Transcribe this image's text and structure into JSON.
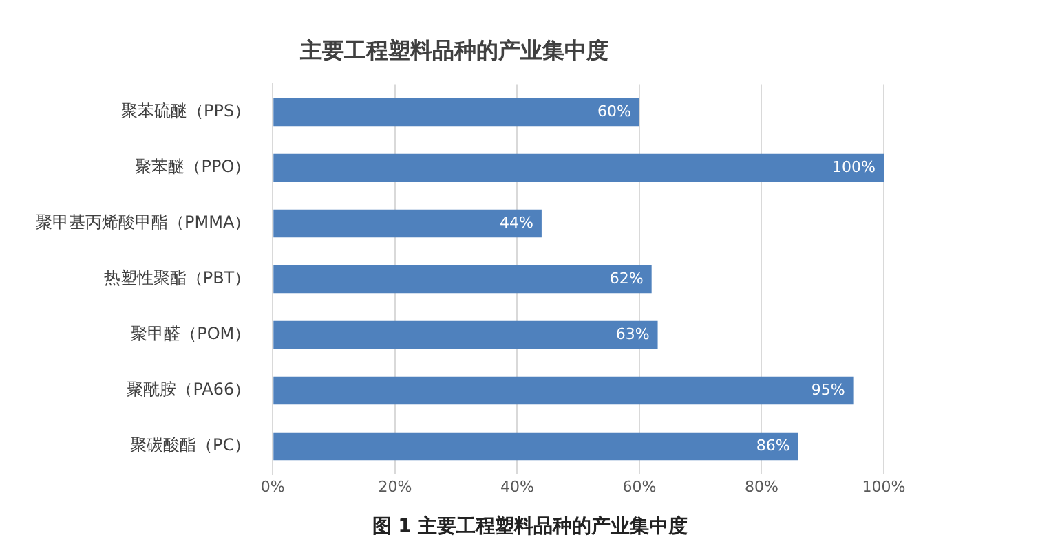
{
  "chart_data": {
    "type": "bar",
    "orientation": "horizontal",
    "title": "主要工程塑料品种的产业集中度",
    "categories": [
      "聚苯硫醚（PPS）",
      "聚苯醚（PPO）",
      "聚甲基丙烯酸甲酯（PMMA）",
      "热塑性聚酯（PBT）",
      "聚甲醛（POM）",
      "聚酰胺（PA66）",
      "聚碳酸酯（PC）"
    ],
    "values": [
      60,
      100,
      44,
      62,
      63,
      95,
      86
    ],
    "value_labels": [
      "60%",
      "100%",
      "44%",
      "62%",
      "63%",
      "95%",
      "86%"
    ],
    "color": "#4f81bd",
    "xlim": [
      0,
      100
    ],
    "xticks": [
      {
        "value": 0,
        "label": "0%"
      },
      {
        "value": 20,
        "label": "20%"
      },
      {
        "value": 40,
        "label": "40%"
      },
      {
        "value": 60,
        "label": "60%"
      },
      {
        "value": 80,
        "label": "80%"
      },
      {
        "value": 100,
        "label": "100%"
      }
    ],
    "grid": "x",
    "legend": false,
    "annotations": [
      "图 1  主要工程塑料品种的产业集中度"
    ]
  }
}
